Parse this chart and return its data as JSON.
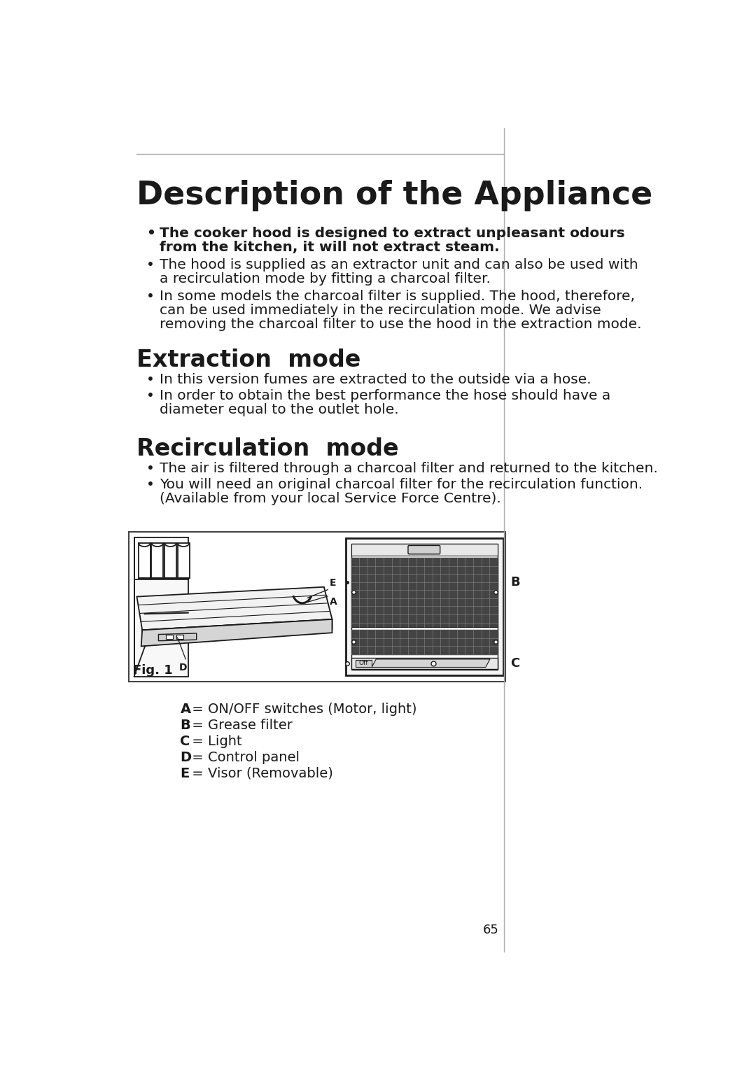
{
  "title": "Description of the Appliance",
  "bg_color": "#ffffff",
  "text_color": "#1a1a1a",
  "border_color": "#999999",
  "page_number": "65",
  "bullet_bold_1_line1": "The cooker hood is designed to extract unpleasant odours",
  "bullet_bold_1_line2": "from the kitchen, it will not extract steam.",
  "bullet_2_line1": "The hood is supplied as an extractor unit and can also be used with",
  "bullet_2_line2": "a recirculation mode by fitting a charcoal filter.",
  "bullet_3_line1": "In some models the charcoal filter is supplied. The hood, therefore,",
  "bullet_3_line2": "can be used immediately in the recirculation mode. We advise",
  "bullet_3_line3": "removing the charcoal filter to use the hood in the extraction mode.",
  "section2_title": "Extraction  mode",
  "ext_b1": "In this version fumes are extracted to the outside via a hose.",
  "ext_b2_line1": "In order to obtain the best performance the hose should have a",
  "ext_b2_line2": "diameter equal to the outlet hole.",
  "section3_title": "Recirculation  mode",
  "rec_b1": "The air is filtered through a charcoal filter and returned to the kitchen.",
  "rec_b2_line1": "You will need an original charcoal filter for the recirculation function.",
  "rec_b2_line2": "(Available from your local Service Force Centre).",
  "fig_label": "Fig. 1",
  "legend_A": " = ON/OFF switches (Motor, light)",
  "legend_B": " = Grease filter",
  "legend_C": " = Light",
  "legend_D": " = Control panel",
  "legend_E": " = Visor (Removable)"
}
